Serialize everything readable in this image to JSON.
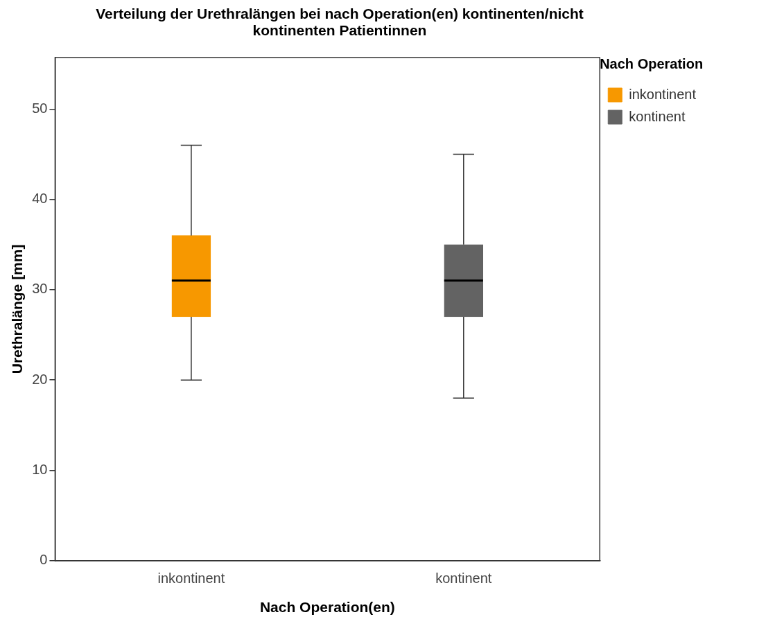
{
  "chart_data": {
    "type": "box",
    "title": "Verteilung der Urethralängen bei nach Operation(en) kontinenten/nicht kontinenten Patientinnen",
    "xlabel": "Nach Operation(en)",
    "ylabel": "Urethralänge [mm]",
    "legend_title": "Nach Operation",
    "legend": "top right",
    "categories": [
      "inkontinent",
      "kontinent"
    ],
    "series": [
      {
        "name": "inkontinent",
        "color": "#f79800",
        "boxes": [
          {
            "low": 20,
            "q1": 27,
            "median": 31,
            "q3": 36,
            "high": 46
          },
          null
        ]
      },
      {
        "name": "kontinent",
        "color": "#636363",
        "boxes": [
          null,
          {
            "low": 18,
            "q1": 27,
            "median": 31,
            "q3": 35,
            "high": 45
          }
        ]
      }
    ],
    "ylim": [
      0,
      55.7
    ],
    "yticks": [
      0,
      10,
      20,
      30,
      40,
      50
    ],
    "grid": false
  }
}
